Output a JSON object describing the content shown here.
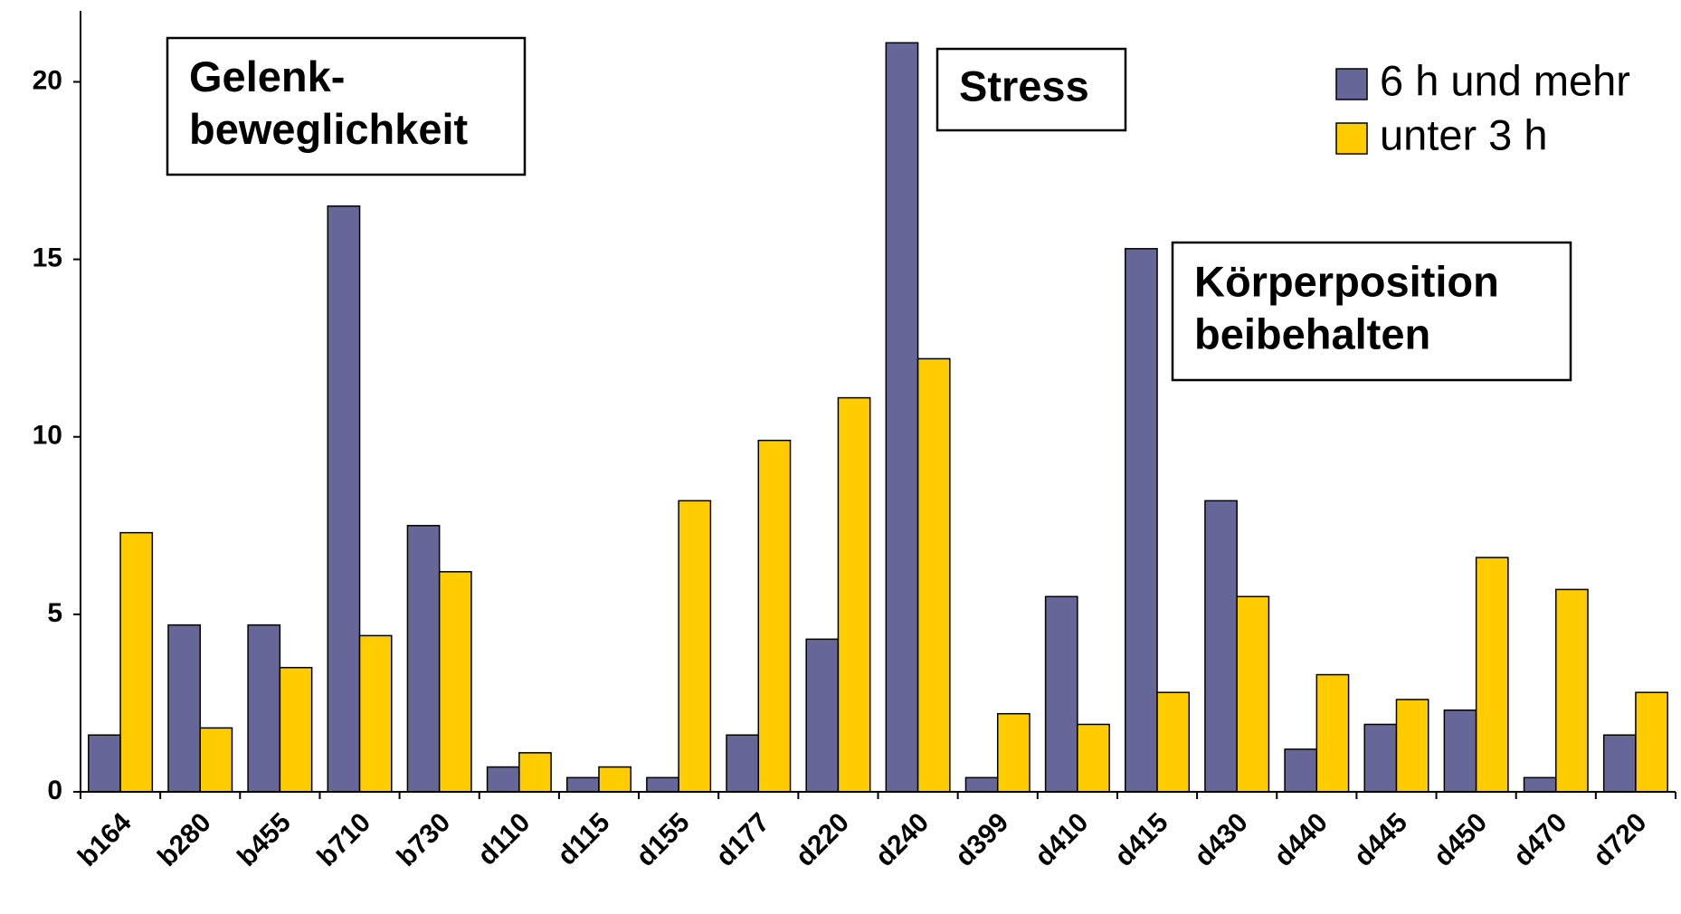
{
  "chart_data": {
    "type": "bar",
    "categories": [
      "b164",
      "b280",
      "b455",
      "b710",
      "b730",
      "d110",
      "d115",
      "d155",
      "d177",
      "d220",
      "d240",
      "d399",
      "d410",
      "d415",
      "d430",
      "d440",
      "d445",
      "d450",
      "d470",
      "d720"
    ],
    "series": [
      {
        "name": "6 h und mehr",
        "color": "#666699",
        "values": [
          1.6,
          4.7,
          4.7,
          16.5,
          7.5,
          0.7,
          0.4,
          0.4,
          1.6,
          4.3,
          21.1,
          0.4,
          5.5,
          15.3,
          8.2,
          1.2,
          1.9,
          2.3,
          0.4,
          1.6
        ]
      },
      {
        "name": "unter 3 h",
        "color": "#ffcc00",
        "values": [
          7.3,
          1.8,
          3.5,
          4.4,
          6.2,
          1.1,
          0.7,
          8.2,
          9.9,
          11.1,
          12.2,
          2.2,
          1.9,
          2.8,
          5.5,
          3.3,
          2.6,
          6.6,
          5.7,
          2.8
        ]
      }
    ],
    "ylim": [
      0,
      22
    ],
    "yticks": [
      0,
      5,
      10,
      15,
      20
    ],
    "legend": "upper right",
    "annotations": [
      {
        "lines": [
          "Gelenk-",
          "beweglichkeit"
        ]
      },
      {
        "lines": [
          "Stress"
        ]
      },
      {
        "lines": [
          "Körperposition",
          "beibehalten"
        ]
      }
    ]
  }
}
